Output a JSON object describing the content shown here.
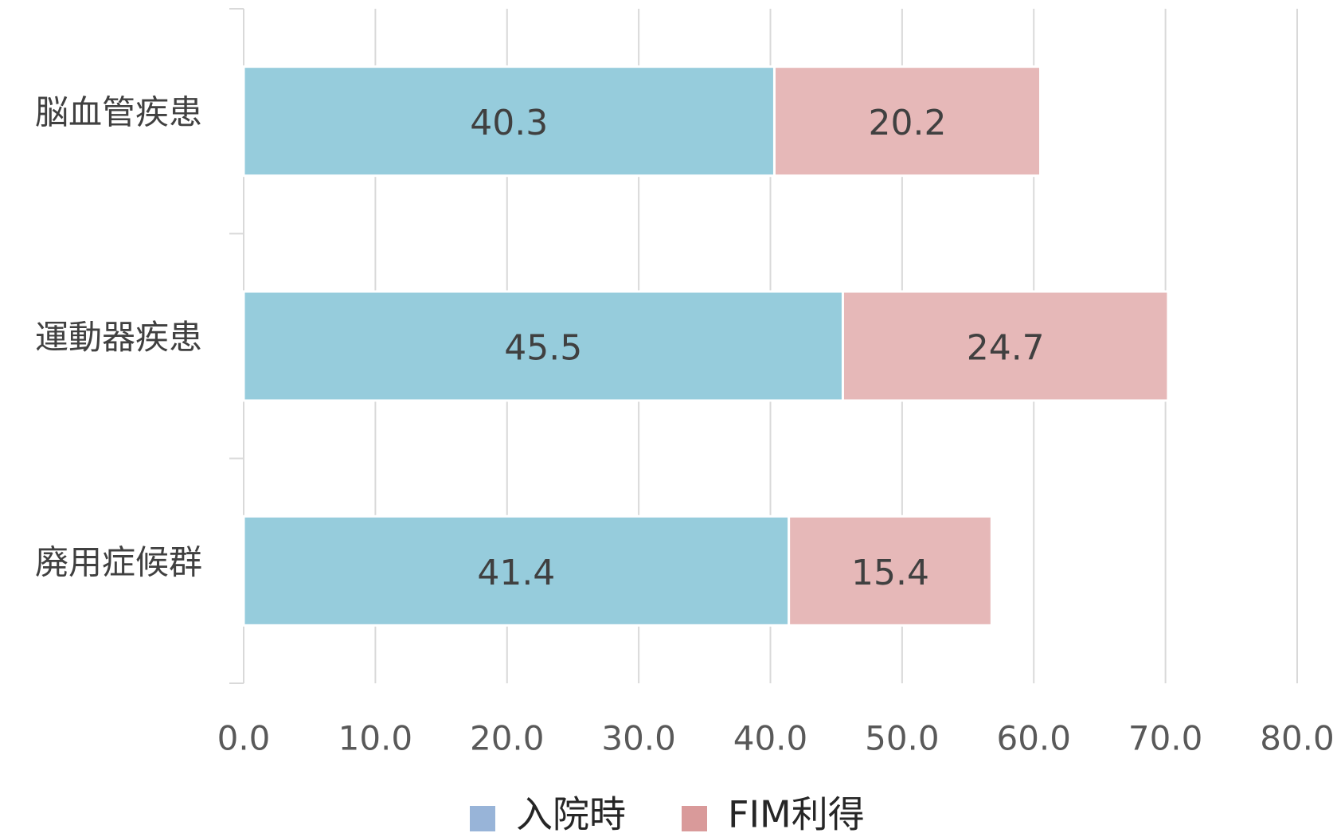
{
  "chart_data": {
    "type": "stacked_bar_horizontal",
    "categories": [
      "脳血管疾患",
      "運動器疾患",
      "廃用症候群"
    ],
    "series": [
      {
        "name": "入院時",
        "color": "#96ccdc",
        "marker_color": "#98b4d8",
        "values": [
          40.3,
          45.5,
          41.4
        ]
      },
      {
        "name": "FIM利得",
        "color": "#e6b8b8",
        "marker_color": "#d99a9a",
        "values": [
          20.2,
          24.7,
          15.4
        ]
      }
    ],
    "xlim": [
      0,
      80
    ],
    "xticks": [
      {
        "value": 0,
        "label": "0.0"
      },
      {
        "value": 10,
        "label": "10.0"
      },
      {
        "value": 20,
        "label": "20.0"
      },
      {
        "value": 30,
        "label": "30.0"
      },
      {
        "value": 40,
        "label": "40.0"
      },
      {
        "value": 50,
        "label": "50.0"
      },
      {
        "value": 60,
        "label": "60.0"
      },
      {
        "value": 70,
        "label": "70.0"
      },
      {
        "value": 80,
        "label": "80.0"
      }
    ],
    "grid": true,
    "legend": "bottom"
  }
}
